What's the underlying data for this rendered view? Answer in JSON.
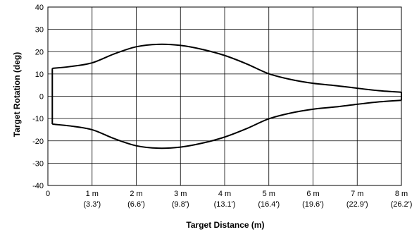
{
  "chart_data": {
    "type": "line",
    "title": "",
    "xlabel": "Target Distance (m)",
    "ylabel": "Target Rotation (deg)",
    "xlim": [
      0,
      8
    ],
    "ylim": [
      -40,
      40
    ],
    "grid": true,
    "x_ticks": [
      {
        "value": 0,
        "label": "0",
        "sublabel": ""
      },
      {
        "value": 1,
        "label": "1 m",
        "sublabel": "(3.3')"
      },
      {
        "value": 2,
        "label": "2 m",
        "sublabel": "(6.6')"
      },
      {
        "value": 3,
        "label": "3 m",
        "sublabel": "(9.8')"
      },
      {
        "value": 4,
        "label": "4 m",
        "sublabel": "(13.1')"
      },
      {
        "value": 5,
        "label": "5 m",
        "sublabel": "(16.4')"
      },
      {
        "value": 6,
        "label": "6 m",
        "sublabel": "(19.6')"
      },
      {
        "value": 7,
        "label": "7 m",
        "sublabel": "(22.9')"
      },
      {
        "value": 8,
        "label": "8 m",
        "sublabel": "(26.2')"
      }
    ],
    "y_ticks": [
      {
        "value": 40,
        "label": "40"
      },
      {
        "value": 30,
        "label": "30"
      },
      {
        "value": 20,
        "label": "20"
      },
      {
        "value": 10,
        "label": "10"
      },
      {
        "value": 0,
        "label": "0"
      },
      {
        "value": -10,
        "label": "-10"
      },
      {
        "value": -20,
        "label": "-20"
      },
      {
        "value": -30,
        "label": "-30"
      },
      {
        "value": -40,
        "label": "-40"
      }
    ],
    "series": [
      {
        "x": [
          0.1,
          0.5,
          1.0,
          1.5,
          2.0,
          2.5,
          3.0,
          3.5,
          4.0,
          4.5,
          5.0,
          5.5,
          6.0,
          6.5,
          7.0,
          7.5,
          8.0
        ],
        "upper": [
          12.5,
          13.3,
          15.0,
          19.0,
          22.2,
          23.3,
          22.8,
          21.0,
          18.3,
          14.5,
          10.1,
          7.5,
          5.8,
          4.8,
          3.6,
          2.5,
          1.8
        ],
        "lower": [
          -12.5,
          -13.3,
          -15.0,
          -19.0,
          -22.2,
          -23.3,
          -22.8,
          -21.0,
          -18.3,
          -14.5,
          -10.1,
          -7.5,
          -5.8,
          -4.8,
          -3.6,
          -2.5,
          -1.8
        ]
      }
    ]
  }
}
